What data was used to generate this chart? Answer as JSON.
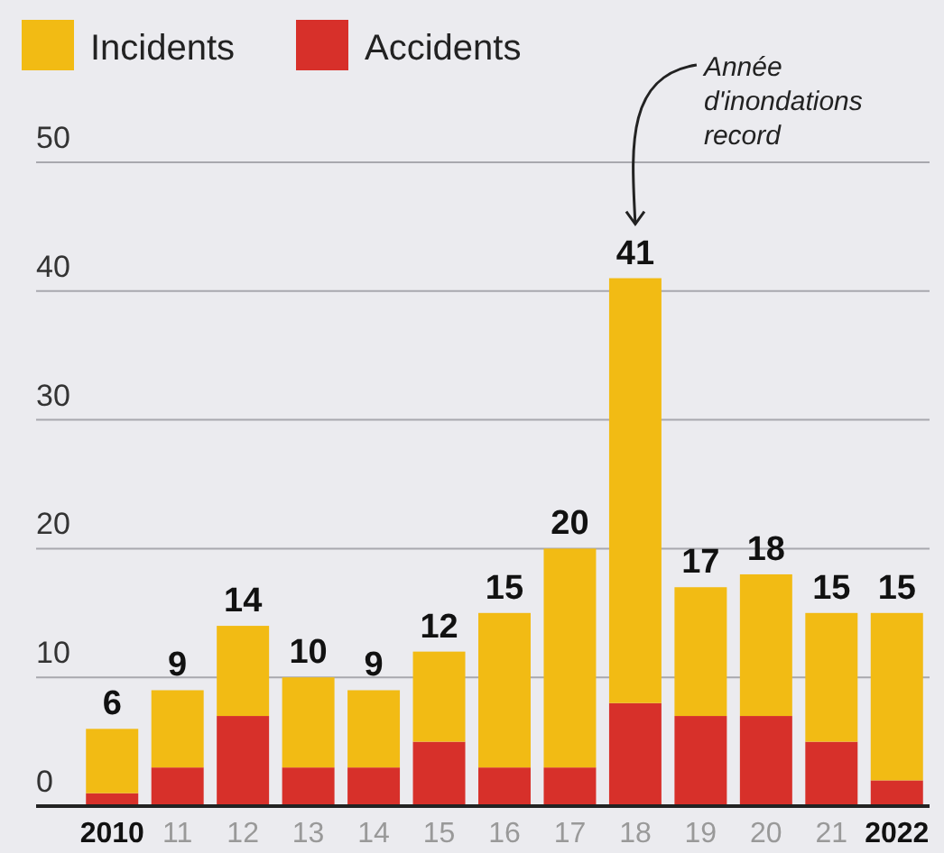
{
  "chart_data": {
    "type": "bar",
    "stacked": true,
    "categories": [
      "2010",
      "11",
      "12",
      "13",
      "14",
      "15",
      "16",
      "17",
      "18",
      "19",
      "20",
      "21",
      "2022"
    ],
    "series": [
      {
        "name": "Accidents",
        "color": "#d7302a",
        "values": [
          1,
          3,
          7,
          3,
          3,
          5,
          3,
          3,
          8,
          7,
          7,
          5,
          2
        ]
      },
      {
        "name": "Incidents",
        "color": "#f2bb14",
        "values": [
          5,
          6,
          7,
          7,
          6,
          7,
          12,
          17,
          33,
          10,
          11,
          10,
          13
        ]
      }
    ],
    "totals": [
      "6",
      "9",
      "14",
      "10",
      "9",
      "12",
      "15",
      "20",
      "41",
      "17",
      "18",
      "15",
      "15"
    ],
    "ylim": [
      0,
      50
    ],
    "yticks": [
      0,
      10,
      20,
      30,
      40,
      50
    ],
    "grid": "y",
    "legend": "top left",
    "annotations": [
      "Année d'inondations record"
    ]
  }
}
